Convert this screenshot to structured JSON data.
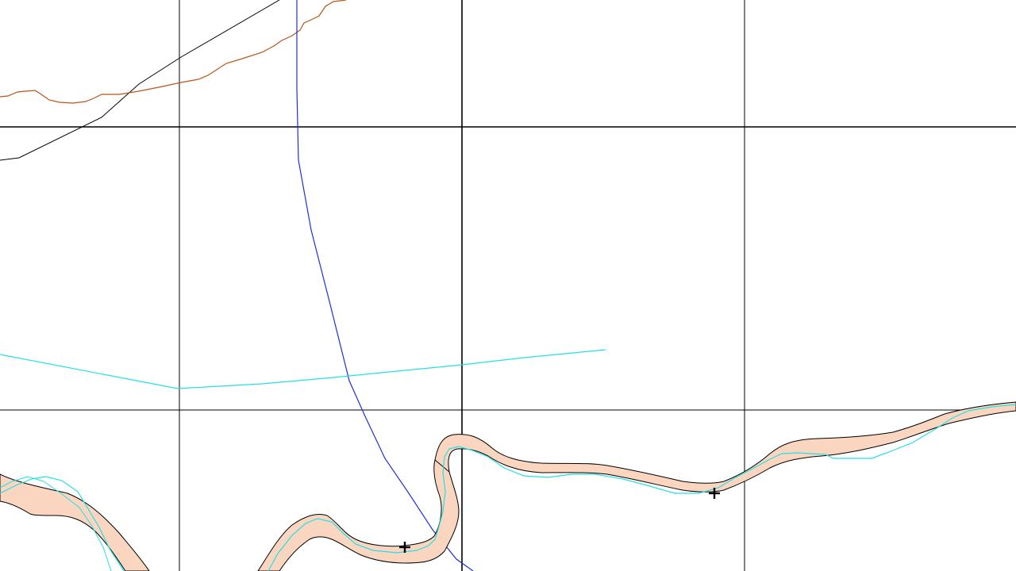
{
  "map": {
    "background_color": "#ffffff",
    "grid": {
      "color": "#000000"
    },
    "layers": {
      "river_polygon": {
        "fill": "#fad6c1",
        "stroke": "#000000"
      },
      "river_centerline": {
        "color": "#22e0e6"
      },
      "lake_line": {
        "color": "#22e0e6"
      },
      "blue_line": {
        "color": "#1f2fd6"
      },
      "contour_brown": {
        "color": "#b5561a"
      },
      "road_black": {
        "color": "#000000"
      }
    },
    "markers": [
      {
        "icon": "crosshair-marker-icon"
      },
      {
        "icon": "crosshair-marker-icon"
      }
    ]
  }
}
